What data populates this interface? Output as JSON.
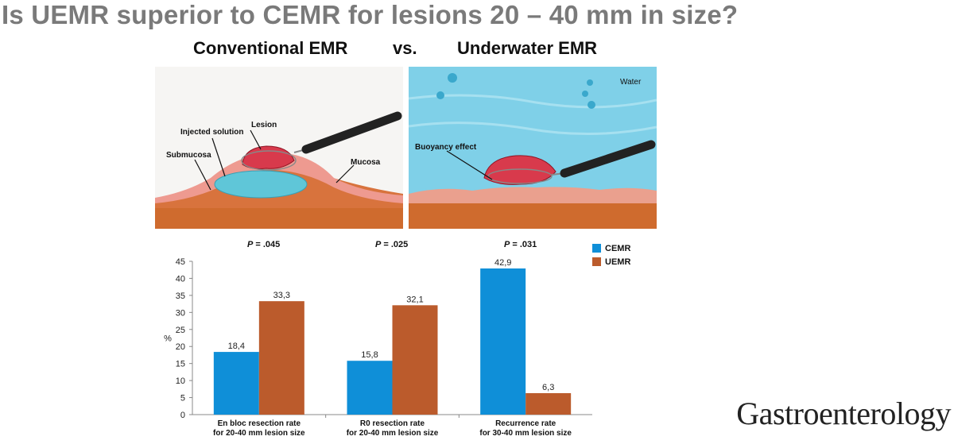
{
  "slide": {
    "title": "Is UEMR superior to CEMR for lesions 20 – 40 mm in size?",
    "heading_left": "Conventional EMR",
    "heading_vs": "vs.",
    "heading_right": "Underwater EMR",
    "brand": "Gastroenterology"
  },
  "illustrations": {
    "conventional": {
      "labels": {
        "lesion": "Lesion",
        "injected": "Injected solution",
        "submucosa": "Submucosa",
        "mucosa": "Mucosa"
      }
    },
    "underwater": {
      "labels": {
        "water": "Water",
        "buoyancy": "Buoyancy effect"
      }
    }
  },
  "pvalues": [
    {
      "label": "P",
      "value": " = .045"
    },
    {
      "label": "P",
      "value": " = .025"
    },
    {
      "label": "P",
      "value": " = .031"
    }
  ],
  "chart_data": {
    "type": "bar",
    "ylabel": "%",
    "ylim": [
      0,
      45
    ],
    "yticks": [
      0,
      5,
      10,
      15,
      20,
      25,
      30,
      35,
      40,
      45
    ],
    "categories": [
      [
        "En bloc resection rate",
        "for 20-40 mm lesion size"
      ],
      [
        "R0 resection rate",
        "for 20-40 mm lesion size"
      ],
      [
        "Recurrence rate",
        "for 30-40 mm lesion size"
      ]
    ],
    "series": [
      {
        "name": "CEMR",
        "color": "#0f8fd8",
        "values": [
          18.4,
          15.8,
          42.9
        ],
        "labels": [
          "18,4",
          "15,8",
          "42,9"
        ]
      },
      {
        "name": "UEMR",
        "color": "#bb5b2c",
        "values": [
          33.3,
          32.1,
          6.3
        ],
        "labels": [
          "33,3",
          "32,1",
          "6,3"
        ]
      }
    ],
    "legend": "top-right"
  }
}
